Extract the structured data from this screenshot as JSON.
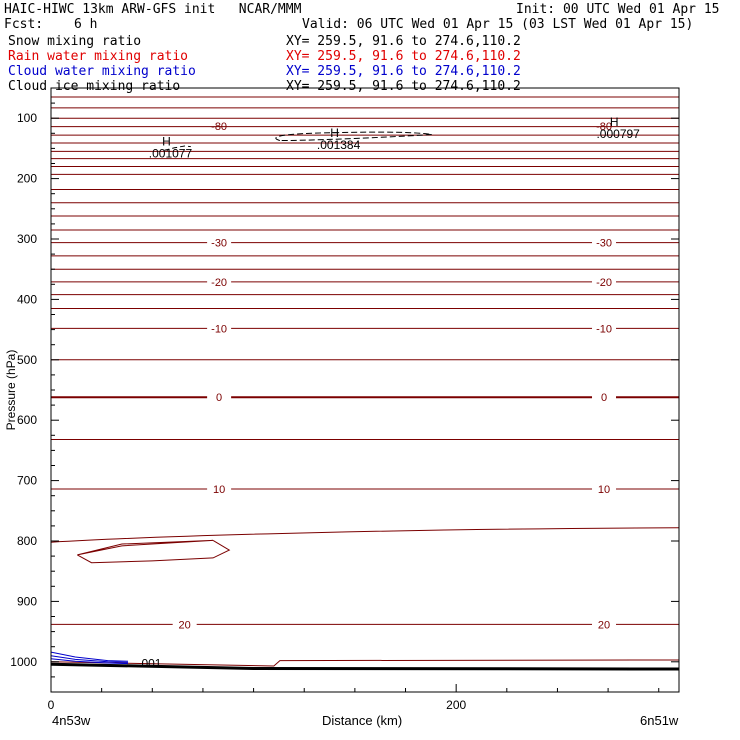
{
  "header": {
    "title": "HAIC-HIWC 13km ARW-GFS init   NCAR/MMM",
    "init": "Init: 00 UTC Wed 01 Apr 15",
    "fcst_label": "Fcst:",
    "fcst_value": "6 h",
    "valid": "Valid: 06 UTC Wed 01 Apr 15 (03 LST Wed 01 Apr 15)",
    "fields": [
      {
        "name": "Snow mixing ratio",
        "xy": "XY= 259.5, 91.6 to 274.6,110.2",
        "color": "#000000"
      },
      {
        "name": "Rain water mixing ratio",
        "xy": "XY= 259.5, 91.6 to 274.6,110.2",
        "color": "#e00000"
      },
      {
        "name": "Cloud water mixing ratio",
        "xy": "XY= 259.5, 91.6 to 274.6,110.2",
        "color": "#0000cc"
      },
      {
        "name": "Cloud ice mixing ratio",
        "xy": "XY= 259.5, 91.6 to 274.6,110.2",
        "color": "#000000"
      }
    ]
  },
  "footer": {
    "left_endpoint": "4n53w",
    "right_endpoint": "6n51w"
  },
  "chart_data": {
    "type": "contour-cross-section",
    "xlabel": "Distance (km)",
    "ylabel": "Pressure (hPa)",
    "xlim": [
      0,
      310
    ],
    "ylim": [
      1050,
      50
    ],
    "x_ticks": [
      0,
      200
    ],
    "y_ticks": [
      100,
      200,
      300,
      400,
      500,
      600,
      700,
      800,
      900,
      1000
    ],
    "colors": {
      "temperature": "#7b0000",
      "cloud_water": "#0000cc",
      "cloud_ice": "#000000",
      "terrain": "#000000"
    },
    "temperature_labels": [
      {
        "text": "-80",
        "pressure": 113,
        "left_km": 82,
        "right_km": 272
      },
      {
        "text": "-30",
        "pressure": 306,
        "left_km": 82,
        "right_km": 272
      },
      {
        "text": "-20",
        "pressure": 371,
        "left_km": 82,
        "right_km": 272
      },
      {
        "text": "-10",
        "pressure": 448,
        "left_km": 82,
        "right_km": 272
      },
      {
        "text": "0",
        "pressure": 562,
        "left_km": 82,
        "right_km": 272
      },
      {
        "text": "10",
        "pressure": 714,
        "left_km": 82,
        "right_km": 272
      },
      {
        "text": "20",
        "pressure": 938,
        "left_km": 65,
        "right_km": 272
      }
    ],
    "temperature_isotherms_hPa": [
      65,
      83,
      100,
      114,
      128,
      141,
      155,
      167,
      180,
      193,
      218,
      240,
      262,
      285,
      306,
      328,
      350,
      371,
      392,
      415,
      448,
      500,
      562,
      632,
      714,
      938
    ],
    "isotherm_800_km_hPa": [
      [
        0,
        802
      ],
      [
        310,
        778
      ]
    ],
    "closed_contour_km_hPa": [
      [
        13,
        823
      ],
      [
        35,
        805
      ],
      [
        80,
        799
      ],
      [
        35,
        808
      ],
      [
        13,
        823
      ]
    ],
    "closed_contour2_km_hPa": [
      [
        13,
        823
      ],
      [
        20,
        836
      ],
      [
        50,
        833
      ],
      [
        80,
        828
      ],
      [
        88,
        815
      ],
      [
        80,
        799
      ]
    ],
    "cloud_ice_maxima": [
      {
        "label": "H",
        "value": ".001077",
        "distance_km": 57,
        "pressure": 145
      },
      {
        "label": "H",
        "value": ".001384",
        "distance_km": 140,
        "pressure": 131
      },
      {
        "label": "H",
        "value": ".000797",
        "distance_km": 278,
        "pressure": 113
      }
    ],
    "cloud_water_label": ".001",
    "cloud_water_label_position": {
      "distance_km": 43,
      "pressure": 1003
    },
    "surface_km_hPa": [
      [
        0,
        1004
      ],
      [
        100,
        1011
      ],
      [
        310,
        1012
      ]
    ]
  }
}
